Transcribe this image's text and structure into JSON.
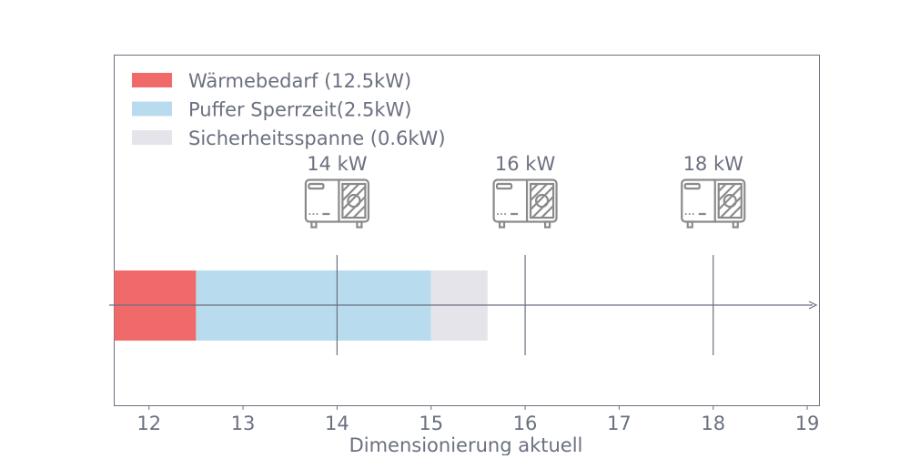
{
  "chart_data": {
    "type": "bar",
    "orientation": "horizontal-stacked",
    "xlabel": "Dimensionierung aktuell",
    "xlim": [
      11.63,
      19.13
    ],
    "xticks": [
      12,
      13,
      14,
      15,
      16,
      17,
      18,
      19
    ],
    "grid": false,
    "legend_placement": "top-left",
    "series": [
      {
        "name": "Wärmebedarf (12.5kW)",
        "start": 11.63,
        "end": 12.5,
        "color": "#f06a6a"
      },
      {
        "name": "Puffer Sperrzeit(2.5kW)",
        "start": 12.5,
        "end": 15.0,
        "color": "#b8dcee"
      },
      {
        "name": "Sicherheitsspanne (0.6kW)",
        "start": 15.0,
        "end": 15.6,
        "color": "#e4e4ea"
      }
    ],
    "markers": [
      {
        "x": 14,
        "label": "14 kW",
        "icon": "heat-pump-icon"
      },
      {
        "x": 16,
        "label": "16 kW",
        "icon": "heat-pump-icon"
      },
      {
        "x": 18,
        "label": "18 kW",
        "icon": "heat-pump-icon"
      }
    ],
    "colors": {
      "text": "#6b7080",
      "axis": "#6b7080",
      "icon": "#8a8a8a"
    }
  }
}
